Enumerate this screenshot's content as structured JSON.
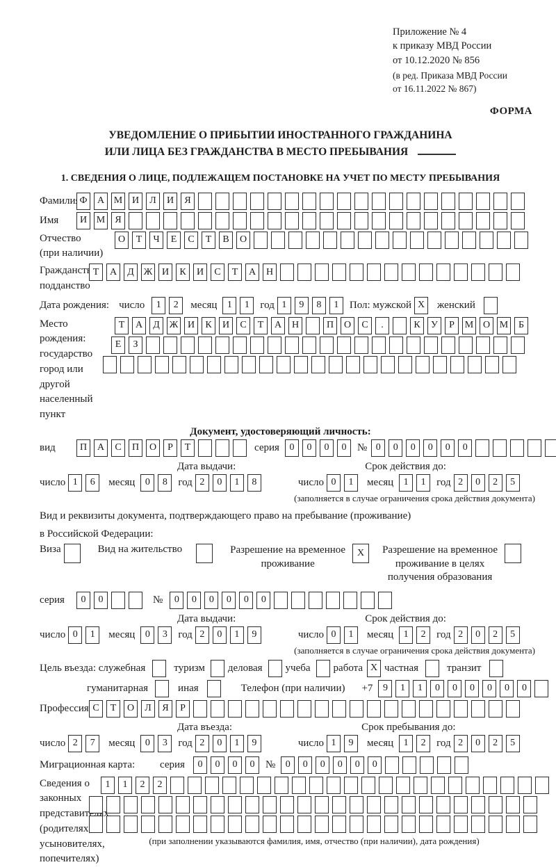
{
  "colors": {
    "background": "#ffffff",
    "text": "#1c1c1c",
    "box_border": "#2b2b2b"
  },
  "header": {
    "appendix_lines": [
      "Приложение № 4",
      "к приказу МВД России",
      "от 10.12.2020 № 856"
    ],
    "revision_lines": [
      "(в ред. Приказа МВД России",
      "от 16.11.2022 № 867)"
    ],
    "form_label": "ФОРМА"
  },
  "title": {
    "line1": "УВЕДОМЛЕНИЕ О ПРИБЫТИИ ИНОСТРАННОГО ГРАЖДАНИНА",
    "line2": "ИЛИ ЛИЦА БЕЗ ГРАЖДАНСТВА В МЕСТО ПРЕБЫВАНИЯ"
  },
  "section1_heading": "1. СВЕДЕНИЯ О ЛИЦЕ, ПОДЛЕЖАЩЕМ ПОСТАНОВКЕ НА УЧЕТ ПО МЕСТУ ПРЕБЫВАНИЯ",
  "labels": {
    "surname": "Фамилия",
    "name": "Имя",
    "patronymic": "Отчество",
    "patronymic_note": "(при наличии)",
    "citizenship_1": "Гражданство,",
    "citizenship_2": "подданство",
    "birth_date": "Дата рождения:",
    "day": "число",
    "month": "месяц",
    "year": "год",
    "sex_male": "Пол: мужской",
    "sex_female": "женский",
    "birth_place": "Место рождения:",
    "birth_place_state": "государство",
    "birth_place_city_1": "город или другой",
    "birth_place_city_2": "населенный пункт",
    "identity_doc_heading": "Документ, удостоверяющий личность:",
    "doc_kind": "вид",
    "series": "серия",
    "number": "№",
    "issue_date": "Дата выдачи:",
    "valid_until": "Срок действия до:",
    "validity_note": "(заполняется в случае ограничения срока действия документа)",
    "residence_doc_line1": "Вид и реквизиты документа, подтверждающего право на пребывание (проживание)",
    "residence_doc_line2": "в Российской Федерации:",
    "visa": "Виза",
    "residence_permit": "Вид на жительство",
    "temp_permit_1": "Разрешение на временное",
    "temp_permit_2": "проживание",
    "edu_permit_1": "Разрешение на временное",
    "edu_permit_2": "проживание в целях",
    "edu_permit_3": "получения образования",
    "purpose": "Цель въезда: служебная",
    "tourism": "туризм",
    "business": "деловая",
    "study": "учеба",
    "work": "работа",
    "private": "частная",
    "transit": "транзит",
    "humanitarian": "гуманитарная",
    "other": "иная",
    "phone": "Телефон (при наличии)",
    "phone_prefix": "+7",
    "profession": "Профессия",
    "entry_date": "Дата въезда:",
    "stay_until": "Срок пребывания до:",
    "migration_card": "Миграционная карта:",
    "representatives_lines": [
      "Сведения о",
      "законных",
      "представителях",
      "(родителях,",
      "усыновителях,",
      "попечителях)"
    ],
    "representatives_note": "(при заполнении указываются фамилия, имя, отчество (при наличии), дата рождения)"
  },
  "cells": {
    "surname": {
      "chars": "ФАМИЛИЯ",
      "len": 26
    },
    "name": {
      "chars": "ИМЯ",
      "len": 26
    },
    "patronymic": {
      "chars": "ОТЧЕСТВО",
      "len": 24
    },
    "citizenship": {
      "chars": "ТАДЖИКИСТАН",
      "len": 25
    },
    "birth_day": {
      "chars": "12",
      "len": 2
    },
    "birth_month": {
      "chars": "11",
      "len": 2
    },
    "birth_year": {
      "chars": "1981",
      "len": 4
    },
    "sex_male": {
      "chars": "X",
      "len": 1
    },
    "sex_female": {
      "chars": "",
      "len": 1
    },
    "birth_place_row1": {
      "chars": "ТАДЖИКИСТАН ПОС. КУРМОМБ",
      "len": 24
    },
    "birth_place_row2": {
      "chars": "ЕЗ",
      "len": 24
    },
    "birth_place_row3": {
      "chars": "",
      "len": 24
    },
    "doc_kind": {
      "chars": "ПАСПОРТ",
      "len": 10
    },
    "doc_series": {
      "chars": "0000",
      "len": 4
    },
    "doc_number": {
      "chars": "000000",
      "len": 11
    },
    "doc_issue_day": {
      "chars": "16",
      "len": 2
    },
    "doc_issue_month": {
      "chars": "08",
      "len": 2
    },
    "doc_issue_year": {
      "chars": "2018",
      "len": 4
    },
    "doc_valid_day": {
      "chars": "01",
      "len": 2
    },
    "doc_valid_month": {
      "chars": "11",
      "len": 2
    },
    "doc_valid_year": {
      "chars": "2025",
      "len": 4
    },
    "visa_cb": {
      "chars": "",
      "len": 1
    },
    "residence_permit_cb": {
      "chars": "",
      "len": 1
    },
    "temp_permit_cb": {
      "chars": "X",
      "len": 1
    },
    "edu_permit_cb": {
      "chars": "",
      "len": 1
    },
    "res_series": {
      "chars": "00",
      "len": 4
    },
    "res_number": {
      "chars": "000000",
      "len": 13
    },
    "res_issue_day": {
      "chars": "01",
      "len": 2
    },
    "res_issue_month": {
      "chars": "03",
      "len": 2
    },
    "res_issue_year": {
      "chars": "2019",
      "len": 4
    },
    "res_valid_day": {
      "chars": "01",
      "len": 2
    },
    "res_valid_month": {
      "chars": "12",
      "len": 2
    },
    "res_valid_year": {
      "chars": "2025",
      "len": 4
    },
    "purpose_official": {
      "chars": "",
      "len": 1
    },
    "purpose_tourism": {
      "chars": "",
      "len": 1
    },
    "purpose_business": {
      "chars": "",
      "len": 1
    },
    "purpose_study": {
      "chars": "",
      "len": 1
    },
    "purpose_work": {
      "chars": "X",
      "len": 1
    },
    "purpose_private": {
      "chars": "",
      "len": 1
    },
    "purpose_transit": {
      "chars": "",
      "len": 1
    },
    "purpose_humanitarian": {
      "chars": "",
      "len": 1
    },
    "purpose_other": {
      "chars": "",
      "len": 1
    },
    "phone_digits": {
      "chars": "911000000",
      "len": 10
    },
    "profession": {
      "chars": "СТОЛЯР",
      "len": 25
    },
    "entry_day": {
      "chars": "27",
      "len": 2
    },
    "entry_month": {
      "chars": "03",
      "len": 2
    },
    "entry_year": {
      "chars": "2019",
      "len": 4
    },
    "stay_day": {
      "chars": "19",
      "len": 2
    },
    "stay_month": {
      "chars": "12",
      "len": 2
    },
    "stay_year": {
      "chars": "2025",
      "len": 4
    },
    "mig_series": {
      "chars": "0000",
      "len": 4
    },
    "mig_number": {
      "chars": "000000",
      "len": 11
    },
    "rep_row1": {
      "chars": "1122",
      "len": 26
    },
    "rep_row2": {
      "chars": "",
      "len": 26
    },
    "rep_row3": {
      "chars": "",
      "len": 26
    }
  }
}
